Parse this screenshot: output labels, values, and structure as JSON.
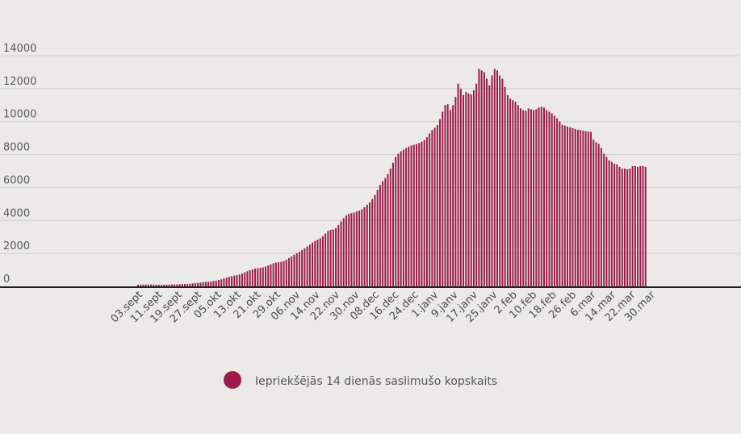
{
  "colors": {
    "background": "#eceae6",
    "bar": "#9b1b4a",
    "gridline": "#cfccc6",
    "axis": "#222222"
  },
  "legend": {
    "label": "Iepriekšējās 14 dienās saslimušo kopskaits"
  },
  "chart_data": {
    "type": "bar",
    "title": "",
    "xlabel": "",
    "ylabel": "",
    "ylim": [
      0,
      14000
    ],
    "yticks": [
      0,
      2000,
      4000,
      6000,
      8000,
      10000,
      12000,
      14000
    ],
    "grid": true,
    "legend_position": "bottom",
    "x_tick_labels": [
      "03.sept",
      "11.sept",
      "19.sept",
      "27.sept",
      "05.okt",
      "13.okt",
      "21.okt",
      "29.okt",
      "06.nov",
      "14.nov",
      "22.nov",
      "30.nov",
      "08.dec",
      "16.dec",
      "24.dec",
      "1.janv",
      "9.janv",
      "17.janv",
      "25.janv",
      "2.feb",
      "10.feb",
      "18.feb",
      "26.feb",
      "6.mar",
      "14.mar",
      "22.mar",
      "30.mar"
    ],
    "series": [
      {
        "name": "Iepriekšējās 14 dienās saslimušo kopskaits",
        "values": [
          100,
          100,
          110,
          110,
          110,
          110,
          110,
          100,
          100,
          100,
          100,
          100,
          110,
          120,
          120,
          120,
          130,
          140,
          150,
          150,
          160,
          180,
          200,
          210,
          230,
          250,
          270,
          280,
          300,
          320,
          350,
          390,
          430,
          480,
          530,
          580,
          620,
          650,
          680,
          720,
          780,
          850,
          920,
          980,
          1030,
          1080,
          1110,
          1130,
          1150,
          1200,
          1270,
          1340,
          1400,
          1440,
          1460,
          1480,
          1530,
          1620,
          1720,
          1820,
          1920,
          2010,
          2100,
          2200,
          2310,
          2420,
          2540,
          2660,
          2760,
          2840,
          2920,
          3040,
          3200,
          3370,
          3430,
          3450,
          3530,
          3720,
          3940,
          4140,
          4300,
          4400,
          4440,
          4480,
          4550,
          4600,
          4680,
          4800,
          4950,
          5100,
          5300,
          5550,
          5850,
          6150,
          6380,
          6580,
          6820,
          7150,
          7500,
          7850,
          8050,
          8200,
          8300,
          8400,
          8480,
          8550,
          8590,
          8640,
          8700,
          8780,
          8880,
          9050,
          9280,
          9480,
          9620,
          9780,
          10150,
          10600,
          11000,
          11050,
          10700,
          11000,
          11500,
          12300,
          12000,
          11600,
          11800,
          11700,
          11650,
          11900,
          12300,
          13200,
          13100,
          13000,
          12600,
          12200,
          12800,
          13200,
          13100,
          12800,
          12600,
          12100,
          11600,
          11400,
          11300,
          11200,
          11000,
          10800,
          10700,
          10650,
          10800,
          10750,
          10700,
          10750,
          10850,
          10900,
          10850,
          10700,
          10600,
          10500,
          10350,
          10200,
          10000,
          9800,
          9750,
          9700,
          9650,
          9600,
          9550,
          9500,
          9480,
          9450,
          9420,
          9400,
          9380,
          8900,
          8750,
          8650,
          8400,
          8050,
          7850,
          7650,
          7550,
          7450,
          7400,
          7250,
          7150,
          7150,
          7100,
          7150,
          7300,
          7300,
          7250,
          7300,
          7300,
          7250
        ]
      }
    ]
  }
}
